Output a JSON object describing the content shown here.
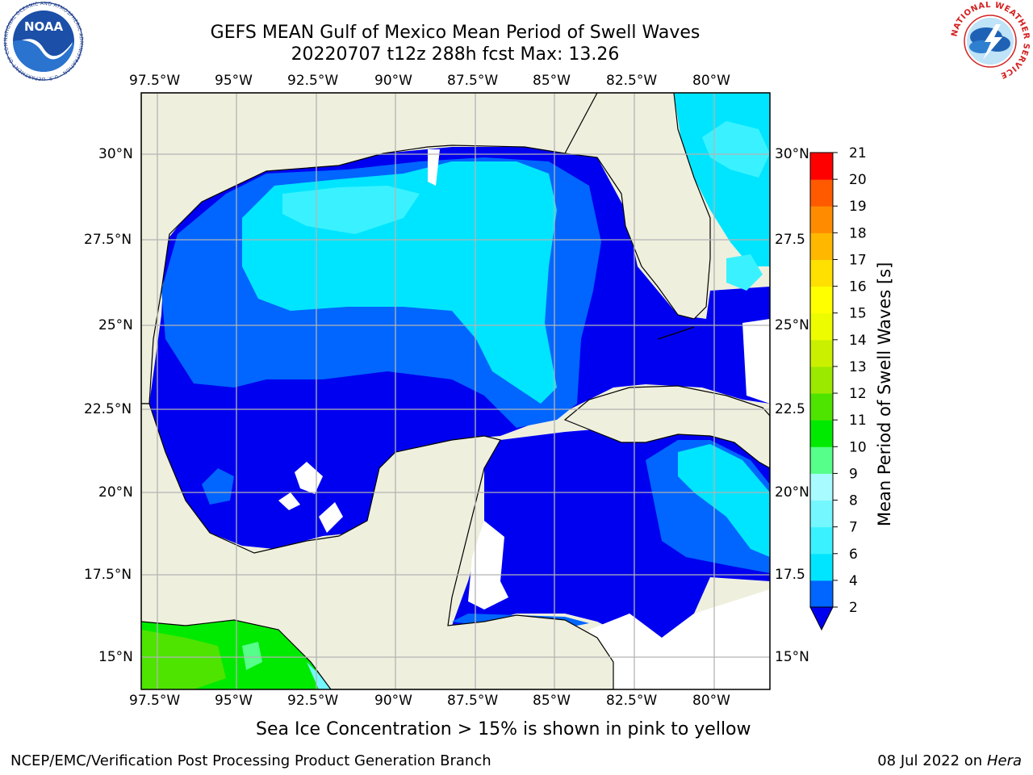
{
  "title": {
    "line1": "GEFS MEAN Gulf of Mexico Mean Period of Swell Waves",
    "line2": "20220707 t12z 288h fcst   Max: 13.26"
  },
  "map": {
    "lon_labels": [
      "97.5°W",
      "95°W",
      "92.5°W",
      "90°W",
      "87.5°W",
      "85°W",
      "82.5°W",
      "80°W"
    ],
    "lat_labels": [
      "30°N",
      "27.5°N",
      "25°N",
      "22.5°N",
      "20°N",
      "17.5°N",
      "15°N"
    ],
    "lat_labels_right": [
      "30°N",
      "27.5",
      "25°N",
      "22.5",
      "20°N",
      "17.5",
      "15°N"
    ],
    "extent": {
      "lon_min": -98,
      "lon_max": -78.2,
      "lat_min": 14,
      "lat_max": 31.9
    },
    "colors": {
      "land": "#efefde",
      "no_data": "#ffffff",
      "grid": "#b4b4b4",
      "coast": "#000000"
    }
  },
  "colorbar": {
    "title": "Mean Period of Swell Waves [s]",
    "levels": [
      "2",
      "4",
      "6",
      "7",
      "8",
      "9",
      "10",
      "11",
      "12",
      "13",
      "14",
      "15",
      "16",
      "17",
      "18",
      "19",
      "20",
      "21"
    ],
    "colors": [
      "#0066ff",
      "#00e5ff",
      "#3af2ff",
      "#74f7ff",
      "#a8fcff",
      "#56ff8a",
      "#00ea00",
      "#4ee400",
      "#9be800",
      "#caf000",
      "#eefc00",
      "#ffff00",
      "#ffe000",
      "#ffb700",
      "#ff8c00",
      "#ff5a00",
      "#ff2a00",
      "#ff0000"
    ],
    "under_color": "#0000f0"
  },
  "logos": {
    "left": {
      "icon": "noaa-logo",
      "text": "NOAA",
      "ring_text": "NATIONAL OCEANIC AND ATMOSPHERIC ADMINISTRATION · U.S. DEPARTMENT OF COMMERCE"
    },
    "right": {
      "icon": "nws-logo",
      "ring_text": "NATIONAL WEATHER SERVICE"
    }
  },
  "caption": "Sea Ice Concentration > 15% is shown in pink to yellow",
  "footer": {
    "left": "NCEP/EMC/Verification Post Processing Product Generation Branch",
    "date": "08 Jul 2022 on ",
    "host": "Hera"
  }
}
